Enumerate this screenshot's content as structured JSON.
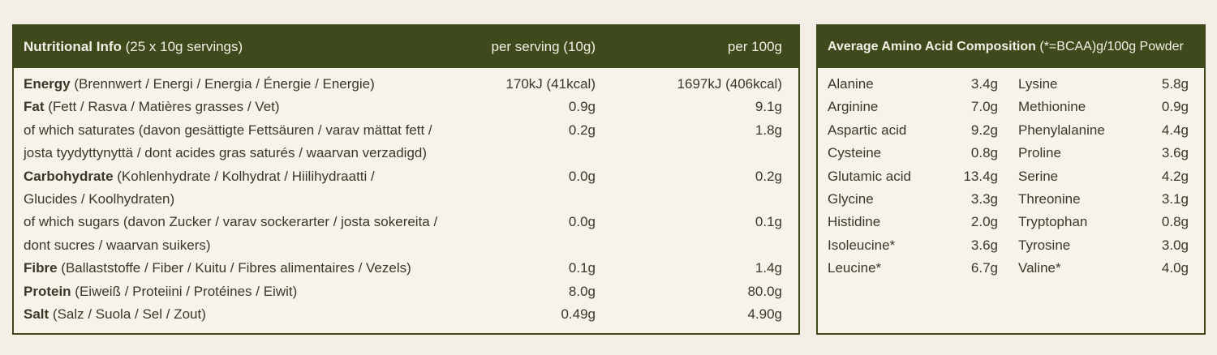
{
  "nutrition": {
    "header": {
      "title": "Nutritional Info",
      "subtitle": "(25 x 10g servings)",
      "per_serving": "per serving (10g)",
      "per_100g": "per 100g"
    },
    "rows": [
      {
        "name": "Energy",
        "lines": [
          "(Brennwert / Energi / Energia / Énergie / Energie)"
        ],
        "per_serving": "170kJ (41kcal)",
        "per_100g": "1697kJ (406kcal)"
      },
      {
        "name": "Fat",
        "lines": [
          "(Fett / Rasva / Matières grasses / Vet)"
        ],
        "per_serving": "0.9g",
        "per_100g": "9.1g"
      },
      {
        "lines": [
          "of which saturates  (davon gesättigte Fettsäuren / varav mättat fett /",
          "josta tyydyttynyttä / dont acides gras saturés / waarvan verzadigd)"
        ],
        "per_serving": "0.2g",
        "per_100g": "1.8g"
      },
      {
        "name": "Carbohydrate",
        "lines": [
          "(Kohlenhydrate / Kolhydrat / Hiilihydraatti /",
          "Glucides / Koolhydraten)"
        ],
        "per_serving": "0.0g",
        "per_100g": "0.2g"
      },
      {
        "lines": [
          "of which sugars (davon Zucker / varav sockerarter / josta sokereita /",
          "dont sucres / waarvan suikers)"
        ],
        "per_serving": "0.0g",
        "per_100g": "0.1g"
      },
      {
        "name": "Fibre",
        "lines": [
          "(Ballaststoffe / Fiber / Kuitu / Fibres alimentaires / Vezels)"
        ],
        "per_serving": "0.1g",
        "per_100g": "1.4g"
      },
      {
        "name": "Protein",
        "lines": [
          "(Eiweiß / Proteiini / Protéines / Eiwit)"
        ],
        "per_serving": "8.0g",
        "per_100g": "80.0g"
      },
      {
        "name": "Salt",
        "lines": [
          "(Salz / Suola / Sel / Zout)"
        ],
        "per_serving": "0.49g",
        "per_100g": "4.90g"
      }
    ]
  },
  "amino": {
    "header": {
      "title": "Average Amino Acid Composition",
      "subtitle": "(*=BCAA)g/100g Powder"
    },
    "left": [
      [
        "Alanine",
        "3.4g"
      ],
      [
        "Arginine",
        "7.0g"
      ],
      [
        "Aspartic acid",
        "9.2g"
      ],
      [
        "Cysteine",
        "0.8g"
      ],
      [
        "Glutamic acid",
        "13.4g"
      ],
      [
        "Glycine",
        "3.3g"
      ],
      [
        "Histidine",
        "2.0g"
      ],
      [
        "Isoleucine*",
        "3.6g"
      ],
      [
        "Leucine*",
        "6.7g"
      ]
    ],
    "right": [
      [
        "Lysine",
        "5.8g"
      ],
      [
        "Methionine",
        "0.9g"
      ],
      [
        "Phenylalanine",
        "4.4g"
      ],
      [
        "Proline",
        "3.6g"
      ],
      [
        "Serine",
        "4.2g"
      ],
      [
        "Threonine",
        "3.1g"
      ],
      [
        "Tryptophan",
        "0.8g"
      ],
      [
        "Tyrosine",
        "3.0g"
      ],
      [
        "Valine*",
        "4.0g"
      ]
    ]
  }
}
